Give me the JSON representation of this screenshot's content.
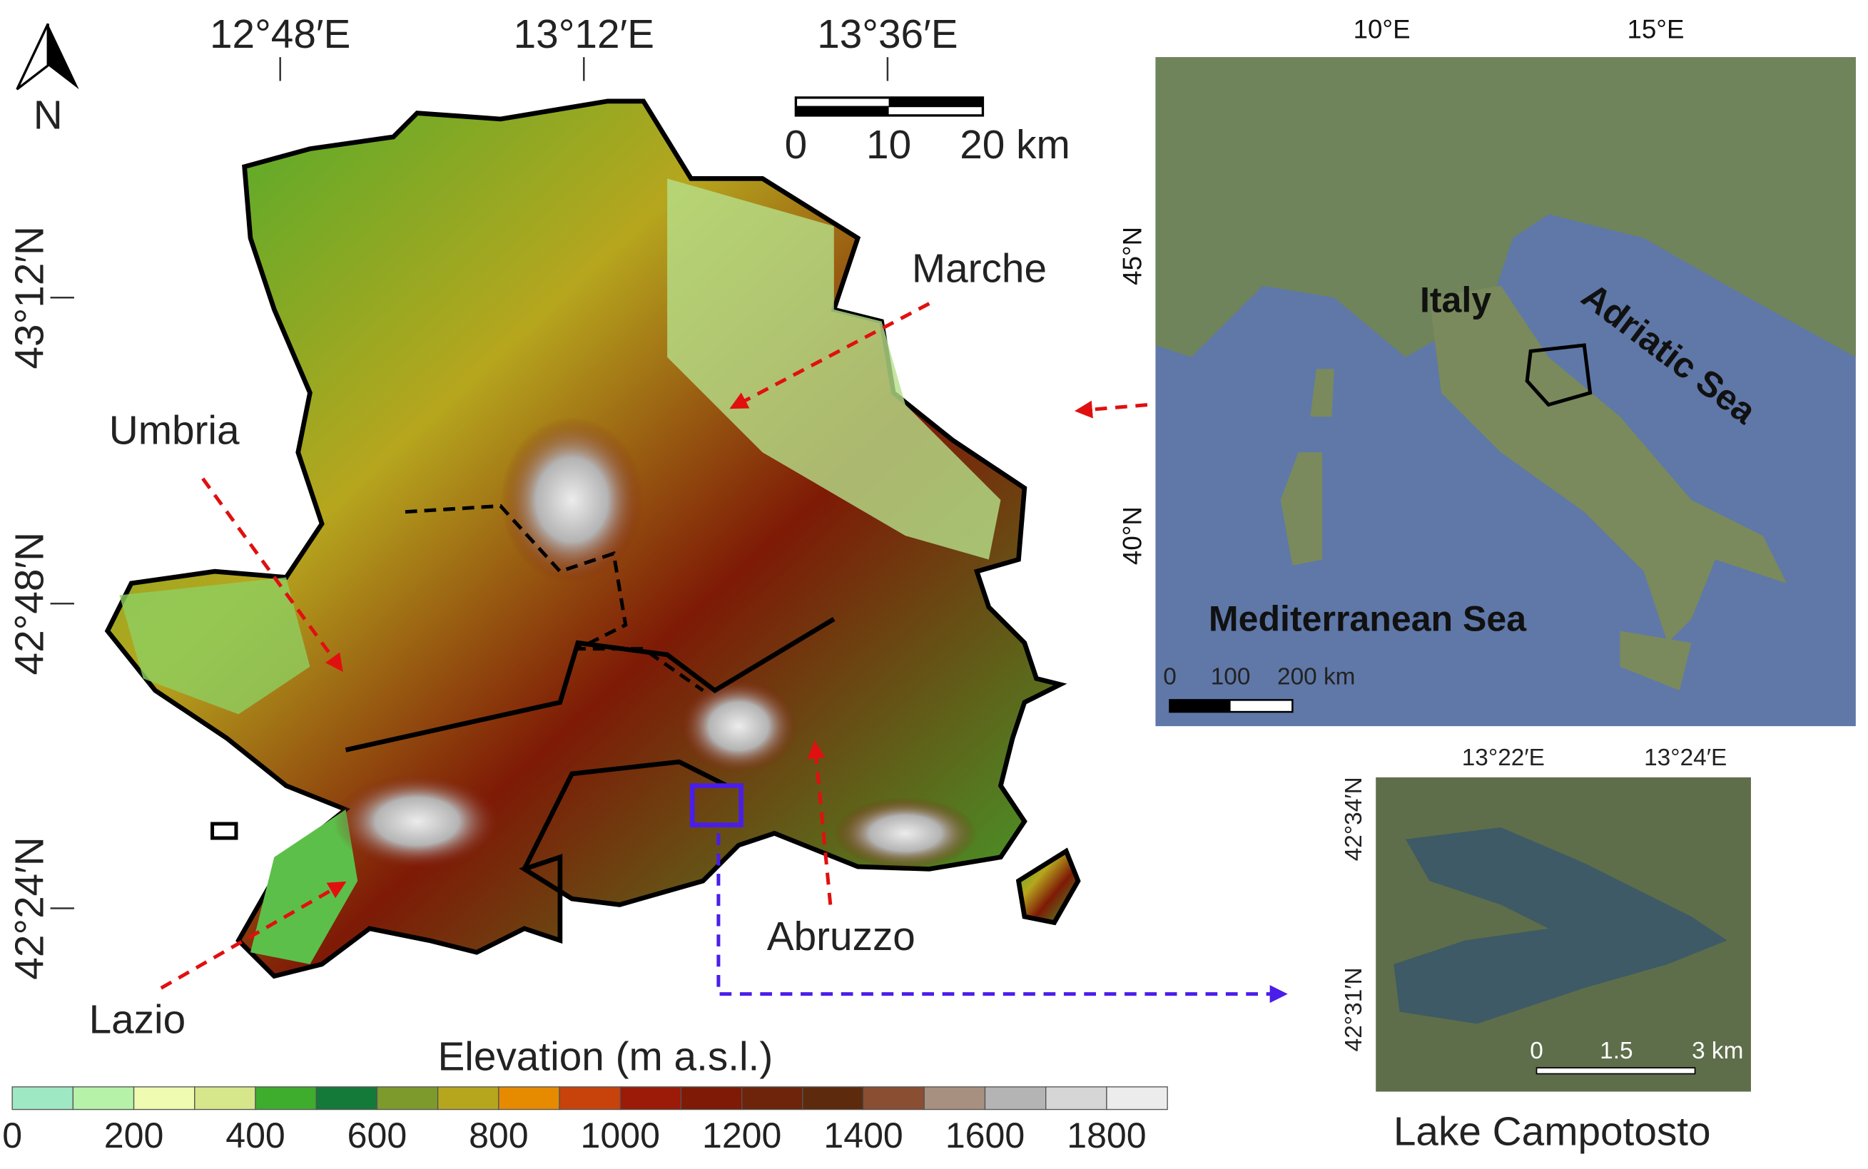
{
  "main_map": {
    "lon_labels": [
      "12°48′E",
      "13°12′E",
      "13°36′E"
    ],
    "lat_labels": [
      "43°12′N",
      "42°48′N",
      "42°24′N"
    ],
    "north": "N",
    "scale_labels": [
      "0",
      "10",
      "20 km"
    ],
    "regions": [
      "Marche",
      "Umbria",
      "Lazio",
      "Abruzzo"
    ]
  },
  "legend": {
    "title": "Elevation (m a.s.l.)",
    "colors": [
      "#9ee8c4",
      "#b6f2a8",
      "#eefbb0",
      "#d6e68a",
      "#3ead2e",
      "#137a3a",
      "#7d9a2c",
      "#b6a61e",
      "#e68a00",
      "#c8430c",
      "#9c1a08",
      "#7e1a06",
      "#6e240a",
      "#5e2a0e",
      "#8a4e32",
      "#a89080",
      "#b4b4b4",
      "#d6d6d6",
      "#ececec"
    ],
    "tick_labels": [
      0,
      200,
      400,
      600,
      800,
      1000,
      1200,
      1400,
      1600,
      1800
    ]
  },
  "italy_inset": {
    "lon_labels": [
      "10°E",
      "15°E"
    ],
    "lat_labels": [
      "45°N",
      "40°N"
    ],
    "labels": {
      "italy": "Italy",
      "adriatic": "Adriatic Sea",
      "mediterranean": "Mediterranean Sea"
    },
    "scale_labels": [
      "0",
      "100",
      "200 km"
    ]
  },
  "lake_inset": {
    "lon_labels": [
      "13°22′E",
      "13°24′E"
    ],
    "lat_labels": [
      "42°34′N",
      "42°31′N"
    ],
    "scale_labels": [
      "0",
      "1.5",
      "3 km"
    ],
    "title": "Lake Campotosto"
  }
}
